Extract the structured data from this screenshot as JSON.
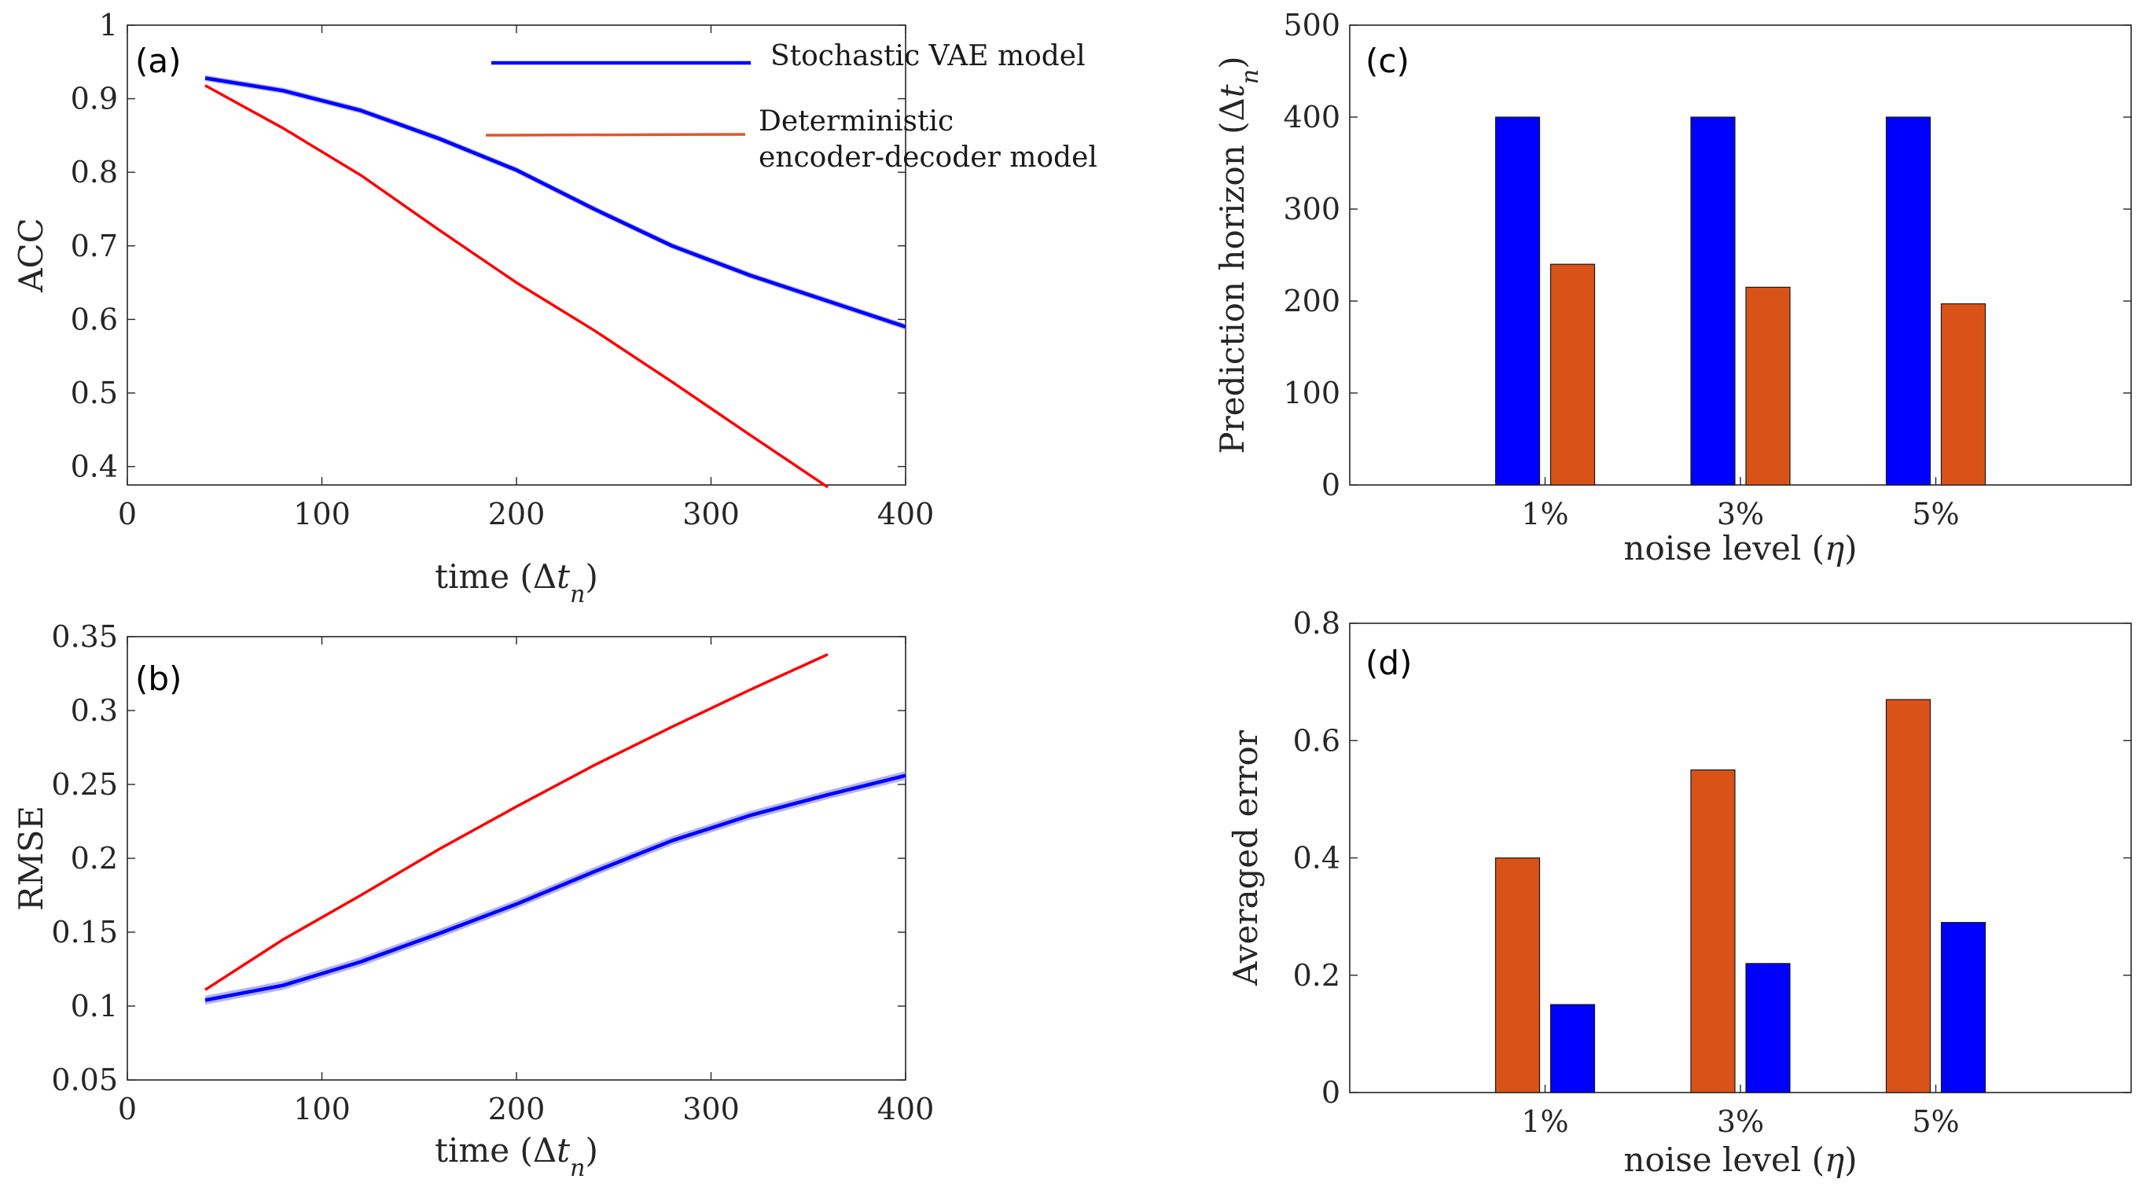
{
  "colors": {
    "vae": "#0000ff",
    "vae_band": "#9b9bf0",
    "det_line": "#ff0000",
    "det_bar": "#d95319",
    "legend_det": "#e8542a"
  },
  "legend": {
    "vae_label": "Stochastic VAE model",
    "det_label_line1": "Deterministic",
    "det_label_line2": "encoder-decoder model"
  },
  "chart_data": [
    {
      "id": "a",
      "type": "line",
      "panel_label": "(a)",
      "xlabel": "time (Δt_n)",
      "ylabel": "ACC",
      "xlim": [
        0,
        400
      ],
      "ylim": [
        0.375,
        1
      ],
      "xticks": [
        0,
        100,
        200,
        300,
        400
      ],
      "yticks": [
        0.4,
        0.5,
        0.6,
        0.7,
        0.8,
        0.9,
        1
      ],
      "ytick_labels": [
        "0.4",
        "0.5",
        "0.6",
        "0.7",
        "0.8",
        "0.9",
        "1"
      ],
      "grid": false,
      "series": [
        {
          "name": "Stochastic VAE model",
          "color": "vae",
          "band": 0.004,
          "x": [
            40,
            80,
            120,
            160,
            200,
            240,
            280,
            320,
            360,
            400
          ],
          "y": [
            0.928,
            0.911,
            0.884,
            0.846,
            0.803,
            0.75,
            0.7,
            0.66,
            0.625,
            0.59
          ]
        },
        {
          "name": "Deterministic encoder-decoder model",
          "color": "det_line",
          "x": [
            40,
            80,
            120,
            160,
            200,
            240,
            280,
            320,
            360
          ],
          "y": [
            0.918,
            0.86,
            0.796,
            0.722,
            0.65,
            0.585,
            0.515,
            0.443,
            0.372
          ]
        }
      ]
    },
    {
      "id": "b",
      "type": "line",
      "panel_label": "(b)",
      "xlabel": "time (Δt_n)",
      "ylabel": "RMSE",
      "xlim": [
        0,
        400
      ],
      "ylim": [
        0.05,
        0.35
      ],
      "xticks": [
        0,
        100,
        200,
        300,
        400
      ],
      "yticks": [
        0.05,
        0.1,
        0.15,
        0.2,
        0.25,
        0.3,
        0.35
      ],
      "ytick_labels": [
        "0.05",
        "0.1",
        "0.15",
        "0.2",
        "0.25",
        "0.3",
        "0.35"
      ],
      "grid": false,
      "series": [
        {
          "name": "Stochastic VAE model",
          "color": "vae",
          "band": 0.003,
          "x": [
            40,
            80,
            120,
            160,
            200,
            240,
            280,
            320,
            360,
            400
          ],
          "y": [
            0.104,
            0.114,
            0.13,
            0.149,
            0.169,
            0.191,
            0.212,
            0.229,
            0.243,
            0.256
          ]
        },
        {
          "name": "Deterministic encoder-decoder model",
          "color": "det_line",
          "x": [
            40,
            80,
            120,
            160,
            200,
            240,
            280,
            320,
            360
          ],
          "y": [
            0.111,
            0.145,
            0.175,
            0.206,
            0.235,
            0.263,
            0.289,
            0.314,
            0.338
          ]
        }
      ]
    },
    {
      "id": "c",
      "type": "bar",
      "panel_label": "(c)",
      "xlabel": "noise level (η)",
      "ylabel": "Prediction horizon (Δt_n)",
      "categories": [
        "1%",
        "3%",
        "5%"
      ],
      "ylim": [
        0,
        500
      ],
      "yticks": [
        0,
        100,
        200,
        300,
        400,
        500
      ],
      "ytick_labels": [
        "0",
        "100",
        "200",
        "300",
        "400",
        "500"
      ],
      "grid": false,
      "series": [
        {
          "name": "Stochastic VAE model",
          "color": "vae",
          "values": [
            400,
            400,
            400
          ]
        },
        {
          "name": "Deterministic encoder-decoder model",
          "color": "det_bar",
          "values": [
            240,
            215,
            197
          ]
        }
      ]
    },
    {
      "id": "d",
      "type": "bar",
      "panel_label": "(d)",
      "xlabel": "noise level (η)",
      "ylabel": "Averaged error",
      "categories": [
        "1%",
        "3%",
        "5%"
      ],
      "ylim": [
        0,
        0.8
      ],
      "yticks": [
        0,
        0.2,
        0.4,
        0.6,
        0.8
      ],
      "ytick_labels": [
        "0",
        "0.2",
        "0.4",
        "0.6",
        "0.8"
      ],
      "grid": false,
      "series": [
        {
          "name": "Deterministic encoder-decoder model",
          "color": "det_bar",
          "values": [
            0.4,
            0.55,
            0.67
          ]
        },
        {
          "name": "Stochastic VAE model",
          "color": "vae",
          "values": [
            0.15,
            0.22,
            0.29
          ]
        }
      ]
    }
  ]
}
